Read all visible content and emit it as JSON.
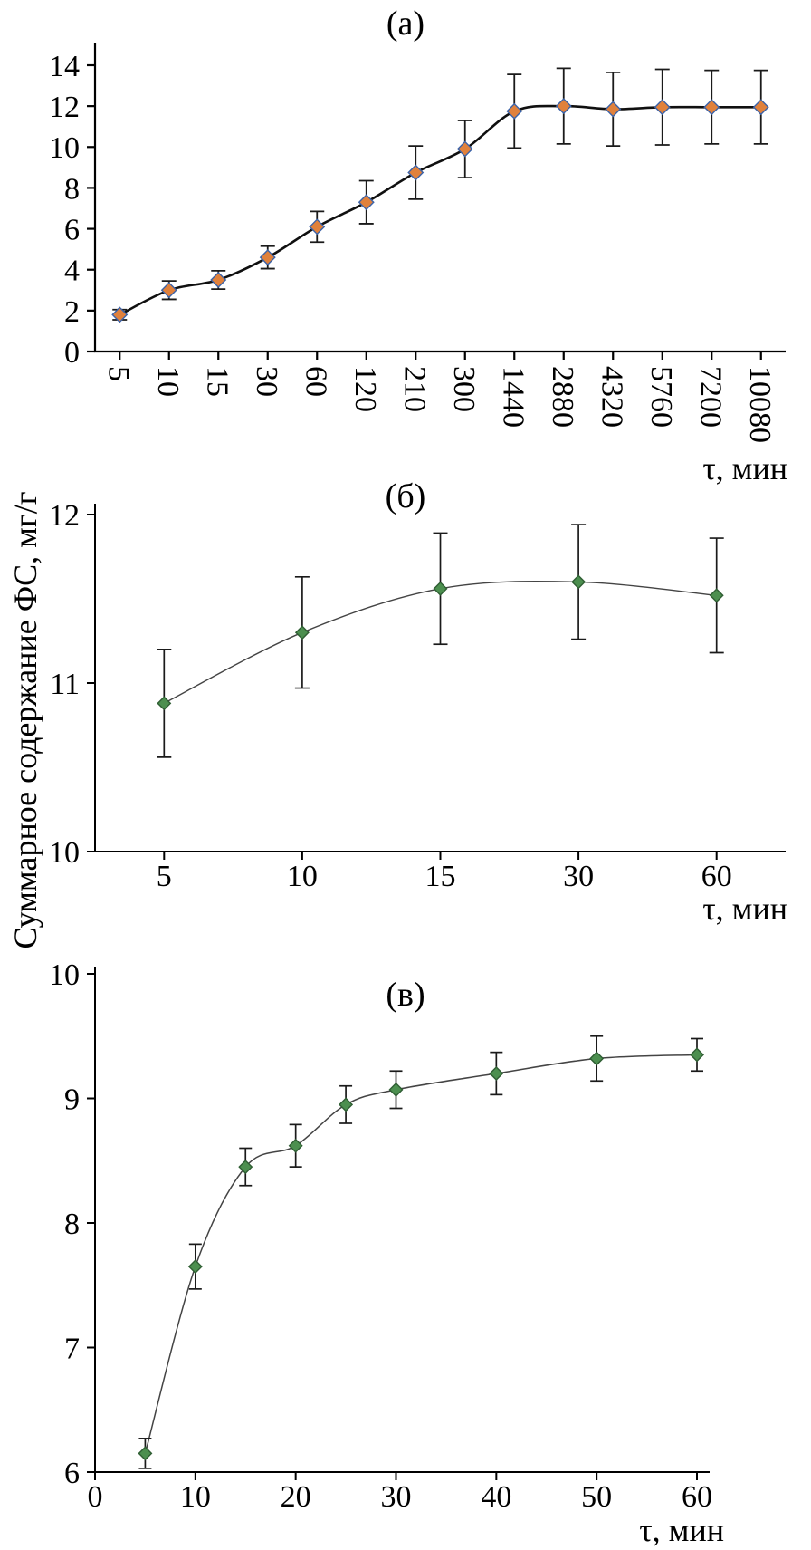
{
  "figure": {
    "shared_ylabel": "Суммарное содержание ФС, мг/г"
  },
  "chart_data": [
    {
      "id": "a",
      "type": "line",
      "title": "(а)",
      "xlabel": "τ, мин",
      "x_type": "categorical",
      "categories": [
        "5",
        "10",
        "15",
        "30",
        "60",
        "120",
        "210",
        "300",
        "1440",
        "2880",
        "4320",
        "5760",
        "7200",
        "10080"
      ],
      "values": [
        1.8,
        3.0,
        3.5,
        4.6,
        6.1,
        7.3,
        8.75,
        9.9,
        11.75,
        12.0,
        11.85,
        11.95,
        11.95,
        11.95
      ],
      "errors": [
        0.25,
        0.45,
        0.45,
        0.55,
        0.75,
        1.05,
        1.3,
        1.4,
        1.8,
        1.85,
        1.8,
        1.85,
        1.8,
        1.8
      ],
      "ylim": [
        0,
        14
      ],
      "yticks": [
        0,
        2,
        4,
        6,
        8,
        10,
        12,
        14
      ],
      "grid": false,
      "legend": false,
      "marker": {
        "shape": "diamond",
        "fill": "#e0813c",
        "stroke": "#3a62a8"
      },
      "error_color": "#1a1a1a",
      "curve_color": "#101010",
      "curve_width": 2.6
    },
    {
      "id": "b",
      "type": "line",
      "title": "(б)",
      "xlabel": "τ, мин",
      "x_type": "categorical",
      "categories": [
        "5",
        "10",
        "15",
        "30",
        "60"
      ],
      "values": [
        10.88,
        11.3,
        11.56,
        11.6,
        11.52
      ],
      "errors": [
        0.32,
        0.33,
        0.33,
        0.34,
        0.34
      ],
      "ylim": [
        10,
        12
      ],
      "yticks": [
        10,
        11,
        12
      ],
      "grid": false,
      "legend": false,
      "marker": {
        "shape": "diamond",
        "fill": "#4c8f4f",
        "stroke": "#2f5e33"
      },
      "error_color": "#1a1a1a",
      "curve_color": "#444444",
      "curve_width": 1.4
    },
    {
      "id": "v",
      "type": "line",
      "title": "(в)",
      "xlabel": "τ, мин",
      "x_type": "numeric",
      "x": [
        5,
        10,
        15,
        20,
        25,
        30,
        40,
        50,
        60
      ],
      "values": [
        6.15,
        7.65,
        8.45,
        8.62,
        8.95,
        9.07,
        9.2,
        9.32,
        9.35
      ],
      "errors": [
        0.12,
        0.18,
        0.15,
        0.17,
        0.15,
        0.15,
        0.17,
        0.18,
        0.13
      ],
      "xlim": [
        0,
        60
      ],
      "xticks": [
        0,
        10,
        20,
        30,
        40,
        50,
        60
      ],
      "ylim": [
        6,
        10
      ],
      "yticks": [
        6,
        7,
        8,
        9,
        10
      ],
      "grid": false,
      "legend": false,
      "marker": {
        "shape": "diamond",
        "fill": "#4c8f4f",
        "stroke": "#2f5e33"
      },
      "error_color": "#1a1a1a",
      "curve_color": "#444444",
      "curve_width": 1.5
    }
  ]
}
